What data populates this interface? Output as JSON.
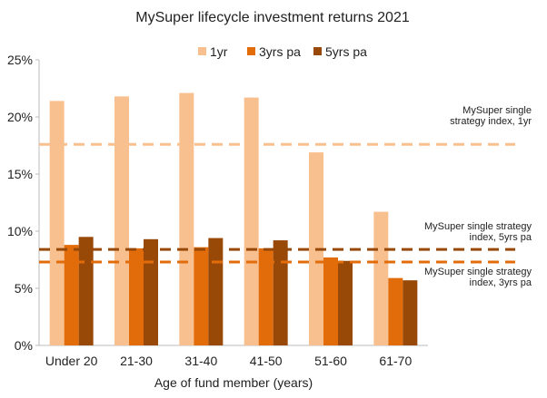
{
  "chart_data": {
    "type": "bar",
    "title": "MySuper lifecycle investment returns 2021",
    "xlabel": "Age of fund member (years)",
    "ylabel": "",
    "ylim": [
      0,
      25
    ],
    "yticks": [
      "0%",
      "5%",
      "10%",
      "15%",
      "20%",
      "25%"
    ],
    "legend_position": "top",
    "categories": [
      "Under 20",
      "21-30",
      "31-40",
      "41-50",
      "51-60",
      "61-70"
    ],
    "series": [
      {
        "name": "1yr",
        "color": "#F9C08F",
        "values": [
          21.4,
          21.8,
          22.1,
          21.7,
          16.9,
          11.7
        ]
      },
      {
        "name": "3yrs pa",
        "color": "#E36C0A",
        "values": [
          8.8,
          8.5,
          8.6,
          8.5,
          7.7,
          5.9
        ]
      },
      {
        "name": "5yrs pa",
        "color": "#984807",
        "values": [
          9.5,
          9.3,
          9.4,
          9.2,
          7.4,
          5.7
        ]
      }
    ],
    "reference_lines": [
      {
        "label_line1": "MySuper single",
        "label_line2": "strategy index, 1yr",
        "value": 17.6,
        "color": "#F9C08F"
      },
      {
        "label_line1": "MySuper single strategy",
        "label_line2": "index, 5yrs pa",
        "value": 8.4,
        "color": "#984807"
      },
      {
        "label_line1": "MySuper single strategy",
        "label_line2": "index, 3yrs pa",
        "value": 7.3,
        "color": "#E36C0A"
      }
    ]
  }
}
